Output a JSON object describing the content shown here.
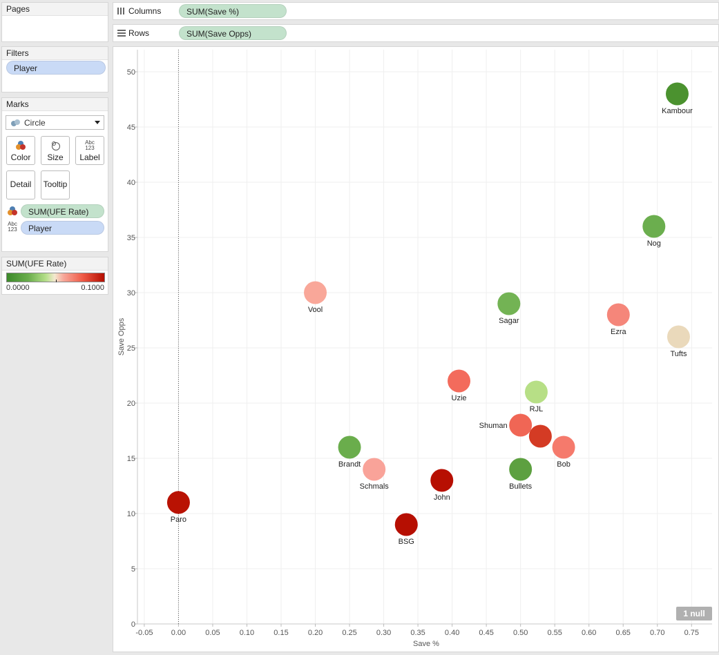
{
  "pages_panel": {
    "title": "Pages"
  },
  "filters_panel": {
    "title": "Filters",
    "items": [
      "Player"
    ]
  },
  "marks_panel": {
    "title": "Marks",
    "mark_type": "Circle",
    "buttons": {
      "color": "Color",
      "size": "Size",
      "label": "Label",
      "detail": "Detail",
      "tooltip": "Tooltip"
    },
    "abc_icon": [
      "Abc",
      "123"
    ],
    "fields": [
      {
        "icon": "color-icon",
        "label": "SUM(UFE Rate)"
      },
      {
        "icon": "label-icon",
        "label": "Player"
      }
    ]
  },
  "legend_panel": {
    "title": "SUM(UFE Rate)",
    "min_label": "0.0000",
    "max_label": "0.1000",
    "colors": [
      "#3c8a2a",
      "#6aad4c",
      "#b5df8a",
      "#f3e9cf",
      "#f7a89a",
      "#ef5a46",
      "#b40e00"
    ]
  },
  "shelves": {
    "columns": {
      "label": "Columns",
      "pill": "SUM(Save %)"
    },
    "rows": {
      "label": "Rows",
      "pill": "SUM(Save Opps)"
    }
  },
  "null_badge": "1 null",
  "chart_data": {
    "type": "scatter",
    "xlabel": "Save %",
    "ylabel": "Save Opps",
    "xlim": [
      -0.06,
      0.78
    ],
    "ylim": [
      0,
      52
    ],
    "x_ticks": [
      "-0.05",
      "0.00",
      "0.05",
      "0.10",
      "0.15",
      "0.20",
      "0.25",
      "0.30",
      "0.35",
      "0.40",
      "0.45",
      "0.50",
      "0.55",
      "0.60",
      "0.65",
      "0.70",
      "0.75"
    ],
    "y_ticks": [
      "0",
      "5",
      "10",
      "15",
      "20",
      "25",
      "30",
      "35",
      "40",
      "45",
      "50"
    ],
    "grid": true,
    "zero_line": "x",
    "points": [
      {
        "name": "Kambour",
        "x": 0.729,
        "y": 48,
        "ufe": 0.002,
        "color": "#4b922f"
      },
      {
        "name": "Nog",
        "x": 0.695,
        "y": 36,
        "ufe": 0.012,
        "color": "#6bae4e"
      },
      {
        "name": "Vool",
        "x": 0.2,
        "y": 30,
        "ufe": 0.065,
        "color": "#f9a799"
      },
      {
        "name": "Sagar",
        "x": 0.483,
        "y": 29,
        "ufe": 0.012,
        "color": "#73b354"
      },
      {
        "name": "Ezra",
        "x": 0.643,
        "y": 28,
        "ufe": 0.072,
        "color": "#f5867a"
      },
      {
        "name": "Tufts",
        "x": 0.731,
        "y": 26,
        "ufe": 0.048,
        "color": "#ead9bb"
      },
      {
        "name": "Uzie",
        "x": 0.41,
        "y": 22,
        "ufe": 0.078,
        "color": "#f36b5c"
      },
      {
        "name": "RJL",
        "x": 0.523,
        "y": 21,
        "ufe": 0.03,
        "color": "#b7df86"
      },
      {
        "name": "Shuman",
        "x": 0.5,
        "y": 18,
        "ufe": 0.08,
        "color": "#f06655"
      },
      {
        "name": "",
        "x": 0.529,
        "y": 17,
        "ufe": 0.092,
        "color": "#d43b24"
      },
      {
        "name": "Bob",
        "x": 0.563,
        "y": 16,
        "ufe": 0.074,
        "color": "#f57a6c"
      },
      {
        "name": "Brandt",
        "x": 0.25,
        "y": 16,
        "ufe": 0.012,
        "color": "#6aad4c"
      },
      {
        "name": "Schmals",
        "x": 0.286,
        "y": 14,
        "ufe": 0.066,
        "color": "#f9a399"
      },
      {
        "name": "Bullets",
        "x": 0.5,
        "y": 14,
        "ufe": 0.008,
        "color": "#5da040"
      },
      {
        "name": "John",
        "x": 0.385,
        "y": 13,
        "ufe": 0.1,
        "color": "#b70f02"
      },
      {
        "name": "Paro",
        "x": 0.0,
        "y": 11,
        "ufe": 0.1,
        "color": "#b91203"
      },
      {
        "name": "BSG",
        "x": 0.333,
        "y": 9,
        "ufe": 0.1,
        "color": "#b60f02"
      }
    ]
  }
}
